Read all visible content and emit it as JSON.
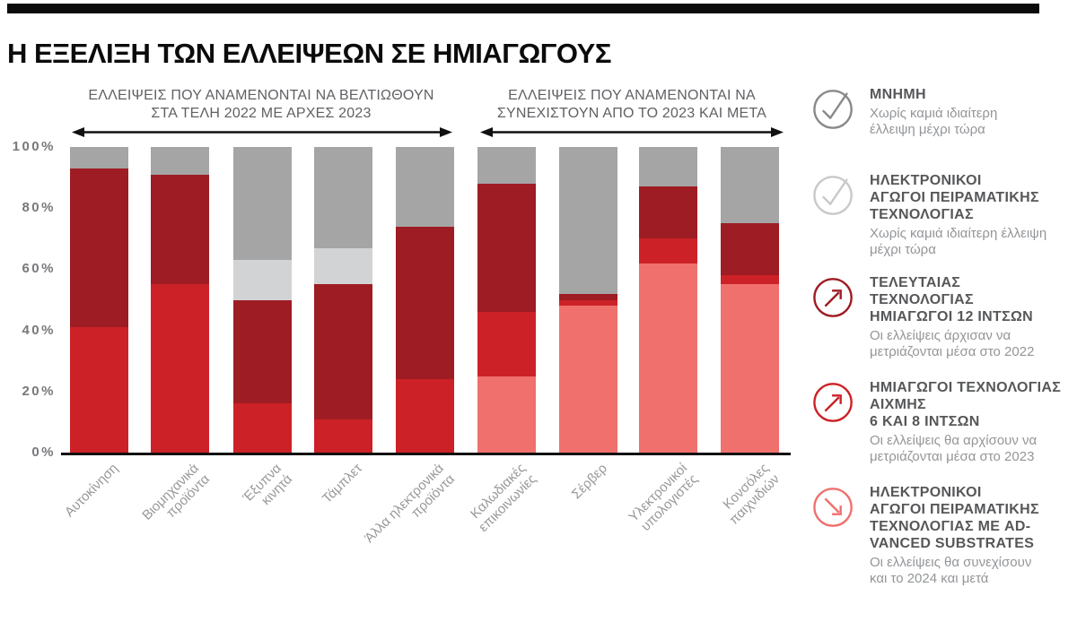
{
  "title": "Η ΕΞΕΛΙΞΗ ΤΩΝ ΕΛΛΕΙΨΕΩΝ ΣΕ ΗΜΙΑΓΩΓΟΥΣ",
  "chart_data": {
    "type": "bar",
    "stacked": true,
    "unit": "%",
    "ylim": [
      0,
      100
    ],
    "grid": false,
    "legend_position": "right",
    "yticks": [
      "0%",
      "20%",
      "40%",
      "60%",
      "80%",
      "100%"
    ],
    "categories": [
      "Αυτοκίνηση",
      "Βιομηχανικά\nπροϊόντα",
      "Έξυπνα\nκινητά",
      "Τάμπλετ",
      "Άλλα ηλεκτρονικά\nπροϊόντα",
      "Καλωδιακές\nεπικοινωνίες",
      "Σέρβερ",
      "Υλεκτρονικοί\nυπολογιστές",
      "Κονσόλες\nπαιχνιδιών"
    ],
    "series": [
      {
        "name": "ΗΛΕΚΤΡΟΝΙΚΟΙ ΑΓΩΓΟΙ ΠΕΙΡΑΜΑΤΙΚΗΣ ΤΕΧΝΟΛΟΓΙΑΣ ΜΕ ADVANCED SUBSTRATES",
        "color": "#f0706e",
        "values": [
          0,
          0,
          0,
          0,
          0,
          25,
          48,
          62,
          55
        ]
      },
      {
        "name": "ΗΜΙΑΓΩΓΟΙ ΤΕΧΝΟΛΟΓΙΑΣ ΑΙΧΜΗΣ 6 ΚΑΙ 8 ΙΝΤΣΩΝ",
        "color": "#cc2127",
        "values": [
          41,
          55,
          16,
          11,
          24,
          21,
          2,
          8,
          3
        ]
      },
      {
        "name": "ΤΕΛΕΥΤΑΙΑΣ ΤΕΧΝΟΛΟΓΙΑΣ ΗΜΙΑΓΩΓΟΙ 12 ΙΝΤΣΩΝ",
        "color": "#9e1c23",
        "values": [
          52,
          36,
          34,
          44,
          50,
          42,
          2,
          17,
          17
        ]
      },
      {
        "name": "ΗΛΕΚΤΡΟΝΙΚΟΙ ΑΓΩΓΟΙ ΠΕΙΡΑΜΑΤΙΚΗΣ ΤΕΧΝΟΛΟΓΙΑΣ",
        "color": "#d2d3d5",
        "values": [
          0,
          0,
          13,
          12,
          0,
          0,
          0,
          0,
          0
        ]
      },
      {
        "name": "ΜΝΗΜΗ",
        "color": "#a6a5a6",
        "values": [
          7,
          9,
          37,
          33,
          26,
          12,
          48,
          13,
          25
        ]
      }
    ],
    "groups": [
      {
        "label": "ΕΛΛΕΙΨΕΙΣ ΠΟΥ ΑΝΑΜΕΝΟΝΤΑΙ ΝΑ ΒΕΛΤΙΩΘΟΥΝ\nΣΤΑ ΤΕΛΗ 2022 ΜΕ ΑΡΧΕΣ 2023",
        "bars": [
          "Αυτοκίνηση",
          "Βιομηχανικά προϊόντα",
          "Έξυπνα κινητά",
          "Τάμπλετ",
          "Άλλα ηλεκτρονικά προϊόντα"
        ]
      },
      {
        "label": "ΕΛΛΕΙΨΕΙΣ ΠΟΥ ΑΝΑΜΕΝΟΝΤΑΙ ΝΑ\nΣΥΝΕΧΙΣΤΟΥΝ ΑΠΟ ΤΟ 2023 ΚΑΙ ΜΕΤΑ",
        "bars": [
          "Καλωδιακές επικοινωνίες",
          "Σέρβερ",
          "Υλεκτρονικοί υπολογιστές",
          "Κονσόλες παιχνιδιών"
        ]
      }
    ]
  },
  "legend": [
    {
      "title": "ΜΝΗΜΗ",
      "desc": "Χωρίς καμιά ιδιαίτερη\nέλλειψη μέχρι τώρα",
      "icon": "check-icon",
      "color": "#88898c"
    },
    {
      "title": "ΗΛΕΚΤΡΟΝΙΚΟΙ\nΑΓΩΓΟΙ ΠΕΙΡΑΜΑΤΙΚΗΣ\nΤΕΧΝΟΛΟΓΙΑΣ",
      "desc": "Χωρίς καμιά ιδιαίτερη έλλειψη\nμέχρι τώρα",
      "icon": "check-icon",
      "color": "#c8c9cb"
    },
    {
      "title": "ΤΕΛΕΥΤΑΙΑΣ\nΤΕΧΝΟΛΟΓΙΑΣ\nΗΜΙΑΓΩΓΟΙ 12 ΙΝΤΣΩΝ",
      "desc": "Οι ελλείψεις άρχισαν να\nμετριάζονται μέσα στο 2022",
      "icon": "trend-up-icon",
      "color": "#9e1c23"
    },
    {
      "title": "ΗΜΙΑΓΩΓΟΙ ΤΕΧΝΟΛΟΓΙΑΣ\nΑΙΧΜΗΣ\n6 ΚΑΙ 8 ΙΝΤΣΩΝ",
      "desc": "Οι ελλείψεις θα αρχίσουν να\nμετριάζονται μέσα στο 2023",
      "icon": "trend-up-icon",
      "color": "#cc2127"
    },
    {
      "title": "ΗΛΕΚΤΡΟΝΙΚΟΙ\nΑΓΩΓΟΙ ΠΕΙΡΑΜΑΤΙΚΗΣ\nΤΕΧΝΟΛΟΓΙΑΣ ΜΕ AD-\nVANCED SUBSTRATES",
      "desc": "Οι ελλείψεις θα συνεχίσουν\nκαι το 2024 και μετά",
      "icon": "trend-down-icon",
      "color": "#f0706e"
    }
  ]
}
